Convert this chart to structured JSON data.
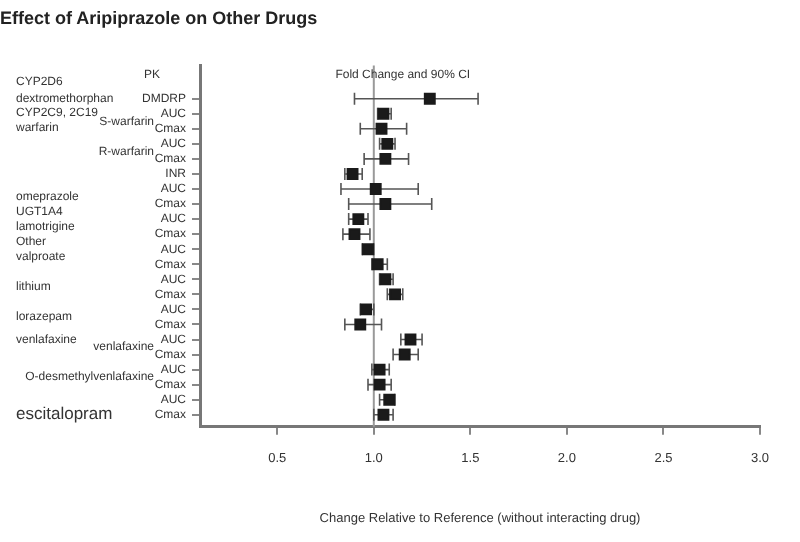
{
  "chart_data": {
    "type": "scatter",
    "title": "Effect of Aripiprazole on Other Drugs",
    "xlabel": "Change Relative to Reference (without interacting drug)",
    "orientation": "horizontal",
    "categories": [
      "DMDRP",
      "AUC",
      "Cmax",
      "AUC",
      "Cmax",
      "INR",
      "AUC",
      "Cmax",
      "AUC",
      "Cmax",
      "AUC",
      "Cmax",
      "AUC",
      "Cmax",
      "AUC",
      "Cmax",
      "AUC",
      "Cmax",
      "AUC",
      "Cmax",
      "AUC",
      "Cmax"
    ],
    "series": [
      {
        "color": "#1a1a1a",
        "values": [
          1.29,
          1.05,
          1.04,
          1.07,
          1.06,
          0.89,
          1.01,
          1.06,
          0.92,
          0.9,
          0.97,
          1.02,
          1.06,
          1.11,
          0.96,
          0.93,
          1.19,
          1.16,
          1.03,
          1.03,
          1.08,
          1.05
        ],
        "errors": [
          [
            0.9,
            1.54
          ],
          [
            1.02,
            1.09
          ],
          [
            0.93,
            1.17
          ],
          [
            1.03,
            1.11
          ],
          [
            0.95,
            1.18
          ],
          [
            0.85,
            0.94
          ],
          [
            0.83,
            1.23
          ],
          [
            0.87,
            1.3
          ],
          [
            0.87,
            0.97
          ],
          [
            0.84,
            0.98
          ],
          [
            0.94,
            1.0
          ],
          [
            0.99,
            1.07
          ],
          [
            1.03,
            1.1
          ],
          [
            1.07,
            1.15
          ],
          [
            0.93,
            1.0
          ],
          [
            0.85,
            1.04
          ],
          [
            1.14,
            1.25
          ],
          [
            1.1,
            1.23
          ],
          [
            0.99,
            1.08
          ],
          [
            0.97,
            1.09
          ],
          [
            1.03,
            1.11
          ],
          [
            1.0,
            1.1
          ]
        ]
      }
    ],
    "xlim": [
      0.1,
      3.0
    ],
    "xticks": [
      {
        "value": 0.5,
        "label": "0.5"
      },
      {
        "value": 1,
        "label": "1.0"
      },
      {
        "value": 1.5,
        "label": "1.5"
      },
      {
        "value": 2,
        "label": "2.0"
      },
      {
        "value": 2.5,
        "label": "2.5"
      },
      {
        "value": 3,
        "label": "3.0"
      }
    ],
    "ref_lines": [
      {
        "axis": "x",
        "value": 1,
        "color": "#999999"
      }
    ],
    "marker": "square",
    "grid": false,
    "legend": false,
    "annotations": [
      "PK",
      "Fold Change and 90% CI",
      "CYP2D6",
      "dextromethorphan",
      "CYP2C9, 2C19",
      "warfarin",
      "S-warfarin",
      "R-warfarin",
      "omeprazole",
      "UGT1A4",
      "lamotrigine",
      "Other",
      "valproate",
      "lithium",
      "lorazepam",
      "venlafaxine",
      "venlafaxine",
      "O-desmethylvenlafaxine",
      "escitalopram"
    ]
  }
}
